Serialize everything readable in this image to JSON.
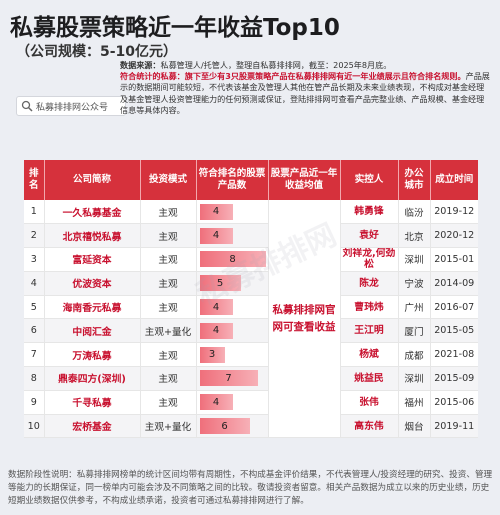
{
  "header": {
    "title": "私募股票策略近一年收益Top10",
    "subtitle": "（公司规模：5-10亿元）"
  },
  "search": {
    "label": "私募排排网公众号"
  },
  "notes": {
    "source_label": "数据来源：",
    "source_text": "私募管理人/托管人，整理自私募排排网，截至：2025年8月底。",
    "criteria_label": "符合统计的私募：",
    "criteria_text": "旗下至少有3只股票策略产品在私募排排网有近一年业绩展示且符合排名规则。",
    "disclaimer": "产品展示的数据期间可能较短，不代表该基金及管理人其他在管产品长期及未来业绩表现，不构成对基金经理及基金管理人投资管理能力的任何预测或保证，登陆排排网可查看产品完整业绩、产品规模、基金经理信息等具体内容。"
  },
  "table": {
    "headers": [
      "排名",
      "公司简称",
      "投资模式",
      "符合排名的股票产品数",
      "股票产品近一年收益均值",
      "实控人",
      "办公城市",
      "成立时间"
    ],
    "merged_note": "私募排排网官网可查看收益",
    "rows": [
      {
        "rank": "1",
        "name": "一久私募基金",
        "mode": "主观",
        "count": "4",
        "manager": "韩勇锋",
        "city": "临汾",
        "date": "2019-12"
      },
      {
        "rank": "2",
        "name": "北京禧悦私募",
        "mode": "主观",
        "count": "4",
        "manager": "袁好",
        "city": "北京",
        "date": "2020-12"
      },
      {
        "rank": "3",
        "name": "富延资本",
        "mode": "主观",
        "count": "8",
        "manager": "刘祥龙,何劲松",
        "city": "深圳",
        "date": "2015-01"
      },
      {
        "rank": "4",
        "name": "优波资本",
        "mode": "主观",
        "count": "5",
        "manager": "陈龙",
        "city": "宁波",
        "date": "2014-09"
      },
      {
        "rank": "5",
        "name": "海南香元私募",
        "mode": "主观",
        "count": "4",
        "manager": "曹玮炜",
        "city": "广州",
        "date": "2016-07"
      },
      {
        "rank": "6",
        "name": "中阅汇金",
        "mode": "主观+量化",
        "count": "4",
        "manager": "王江明",
        "city": "厦门",
        "date": "2015-05"
      },
      {
        "rank": "7",
        "name": "万涛私募",
        "mode": "主观",
        "count": "3",
        "manager": "杨斌",
        "city": "成都",
        "date": "2021-08"
      },
      {
        "rank": "8",
        "name": "鼎泰四方(深圳)",
        "mode": "主观",
        "count": "7",
        "manager": "姚益民",
        "city": "深圳",
        "date": "2015-09"
      },
      {
        "rank": "9",
        "name": "千寻私募",
        "mode": "主观",
        "count": "4",
        "manager": "张伟",
        "city": "福州",
        "date": "2015-06"
      },
      {
        "rank": "10",
        "name": "宏桥基金",
        "mode": "主观+量化",
        "count": "6",
        "manager": "高东伟",
        "city": "烟台",
        "date": "2019-11"
      }
    ]
  },
  "footer": {
    "text": "数据阶段性说明：私募排排网榜单的统计区间均带有周期性，不构成基金评价结果，不代表管理人/投资经理的研究、投资、管理等能力的长期保证，同一榜单内可能会涉及不同策略之间的比较。敬请投资者留意。相关产品数据为成立以来的历史业绩，历史短期业绩数据仅供参考，不构成业绩承诺，投资者可通过私募排排网进行了解。"
  },
  "watermark": "私募排排网",
  "colors": {
    "header_red": "#d6313c",
    "name_red": "#c8102e",
    "bar": "#ef6f7b"
  }
}
